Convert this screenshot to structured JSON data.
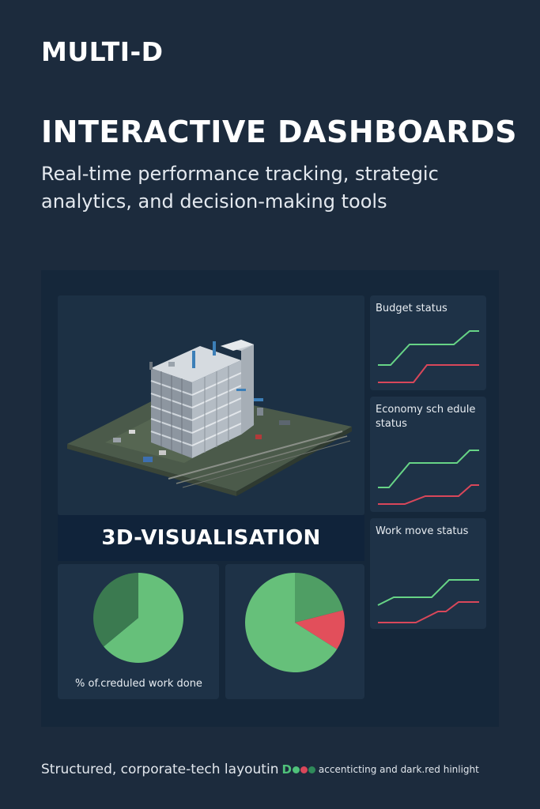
{
  "brand": "MULTI-D",
  "headline": "INTERACTIVE DASHBOARDS",
  "subheadline_line1": "Real-time performance tracking, strategic",
  "subheadline_line2": "analytics, and decision-making tools",
  "visualisation": {
    "label": "3D-VISUALISATION",
    "image_subject": "isometric-building-under-construction"
  },
  "status_cards": [
    {
      "title": "Budget status"
    },
    {
      "title": "Economy sch edule status"
    },
    {
      "title": "Work move status"
    }
  ],
  "pie_cards": [
    {
      "caption": "% of.creduled work done",
      "slices": [
        {
          "color": "#66c07a",
          "fraction": 0.64
        },
        {
          "color": "#3b7a50",
          "fraction": 0.36
        }
      ]
    },
    {
      "caption": "",
      "slices": [
        {
          "color": "#4f9e64",
          "fraction": 0.21
        },
        {
          "color": "#e24f5b",
          "fraction": 0.13
        },
        {
          "color": "#66c07a",
          "fraction": 0.66
        }
      ]
    }
  ],
  "footer": {
    "text": "Structured,  corporate-tech layoutin",
    "legend_letter": "D",
    "small_text": "accenticting and dark.red hinlight"
  },
  "colors": {
    "background": "#1c2b3d",
    "panel": "#15273a",
    "card": "#1e3247",
    "green_accent": "#67d486",
    "red_highlight": "#d9475a"
  },
  "icons": [
    "building-icon"
  ]
}
